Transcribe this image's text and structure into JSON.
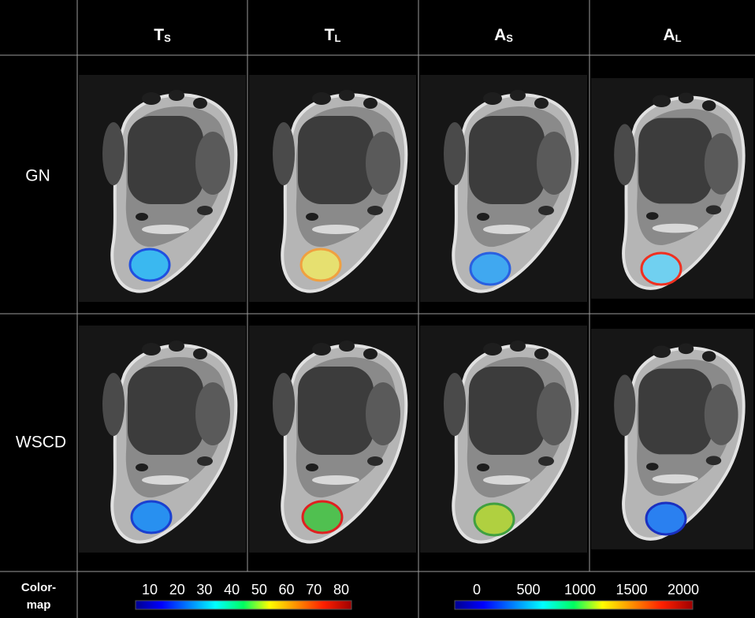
{
  "headers": [
    {
      "base": "T",
      "sub": "S"
    },
    {
      "base": "T",
      "sub": "L"
    },
    {
      "base": "A",
      "sub": "S"
    },
    {
      "base": "A",
      "sub": "L"
    }
  ],
  "row_labels": [
    "GN",
    "WSCD"
  ],
  "colormap_label": [
    "Color-",
    "map"
  ],
  "colormaps": [
    {
      "ticks": [
        10,
        20,
        30,
        40,
        50,
        60,
        70,
        80
      ]
    },
    {
      "ticks": [
        0,
        500,
        1000,
        1500,
        2000
      ]
    }
  ]
}
